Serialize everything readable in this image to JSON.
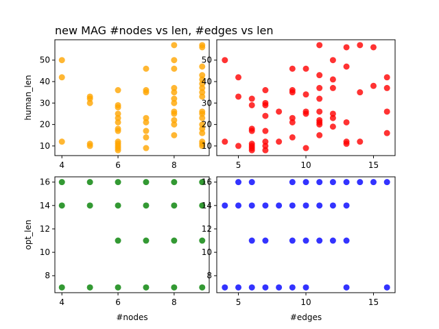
{
  "figure": {
    "title": "new MAG #nodes vs len, #edges vs len",
    "colors": {
      "orange": "#ffa500",
      "red": "#ff0000",
      "green": "#008000",
      "blue": "#0000ff"
    }
  },
  "chart_data": [
    {
      "type": "scatter",
      "name": "top-left",
      "color": "#ffa500",
      "xlabel": "",
      "ylabel": "human_len",
      "xlim": [
        3.75,
        9.25
      ],
      "ylim": [
        5.5,
        59.5
      ],
      "xticks": [
        4,
        6,
        8
      ],
      "yticks": [
        10,
        20,
        30,
        40,
        50
      ],
      "points": [
        [
          4,
          50
        ],
        [
          4,
          42
        ],
        [
          4,
          12
        ],
        [
          5,
          33
        ],
        [
          5,
          32
        ],
        [
          5,
          30
        ],
        [
          5,
          11
        ],
        [
          5,
          10
        ],
        [
          6,
          36
        ],
        [
          6,
          29
        ],
        [
          6,
          28
        ],
        [
          6,
          25
        ],
        [
          6,
          23
        ],
        [
          6,
          21
        ],
        [
          6,
          18
        ],
        [
          6,
          17
        ],
        [
          6,
          12
        ],
        [
          6,
          11
        ],
        [
          6,
          10
        ],
        [
          6,
          9
        ],
        [
          6,
          8
        ],
        [
          7,
          46
        ],
        [
          7,
          36
        ],
        [
          7,
          35
        ],
        [
          7,
          23
        ],
        [
          7,
          21
        ],
        [
          7,
          17
        ],
        [
          7,
          14
        ],
        [
          7,
          9
        ],
        [
          8,
          57
        ],
        [
          8,
          50
        ],
        [
          8,
          46
        ],
        [
          8,
          37
        ],
        [
          8,
          35
        ],
        [
          8,
          32
        ],
        [
          8,
          30
        ],
        [
          8,
          26
        ],
        [
          8,
          25
        ],
        [
          8,
          22
        ],
        [
          8,
          20
        ],
        [
          8,
          15
        ],
        [
          9,
          57
        ],
        [
          9,
          56
        ],
        [
          9,
          47
        ],
        [
          9,
          43
        ],
        [
          9,
          41
        ],
        [
          9,
          39
        ],
        [
          9,
          37
        ],
        [
          9,
          35
        ],
        [
          9,
          33
        ],
        [
          9,
          26
        ],
        [
          9,
          25
        ],
        [
          9,
          23
        ],
        [
          9,
          20
        ],
        [
          9,
          18
        ],
        [
          9,
          16
        ],
        [
          9,
          12
        ],
        [
          9,
          11
        ],
        [
          9,
          10
        ]
      ]
    },
    {
      "type": "scatter",
      "name": "top-right",
      "color": "#ff0000",
      "xlabel": "",
      "ylabel": "",
      "xlim": [
        3.4,
        16.6
      ],
      "ylim": [
        5.5,
        59.5
      ],
      "xticks": [
        5,
        10,
        15
      ],
      "yticks": [
        10,
        20,
        30,
        40,
        50
      ],
      "points": [
        [
          4,
          50
        ],
        [
          4,
          12
        ],
        [
          5,
          42
        ],
        [
          5,
          33
        ],
        [
          5,
          10
        ],
        [
          6,
          32
        ],
        [
          6,
          29
        ],
        [
          6,
          18
        ],
        [
          6,
          17
        ],
        [
          6,
          11
        ],
        [
          6,
          10
        ],
        [
          6,
          9
        ],
        [
          6,
          8
        ],
        [
          7,
          36
        ],
        [
          7,
          30
        ],
        [
          7,
          29
        ],
        [
          7,
          24
        ],
        [
          7,
          17
        ],
        [
          7,
          12
        ],
        [
          7,
          10
        ],
        [
          7,
          8
        ],
        [
          8,
          26
        ],
        [
          8,
          12
        ],
        [
          9,
          46
        ],
        [
          9,
          36
        ],
        [
          9,
          35
        ],
        [
          9,
          23
        ],
        [
          9,
          21
        ],
        [
          9,
          14
        ],
        [
          10,
          46
        ],
        [
          10,
          34
        ],
        [
          10,
          26
        ],
        [
          10,
          25
        ],
        [
          10,
          9
        ],
        [
          11,
          57
        ],
        [
          11,
          43
        ],
        [
          11,
          37
        ],
        [
          11,
          32
        ],
        [
          11,
          26
        ],
        [
          11,
          22
        ],
        [
          11,
          21
        ],
        [
          11,
          20
        ],
        [
          11,
          15
        ],
        [
          12,
          50
        ],
        [
          12,
          41
        ],
        [
          12,
          37
        ],
        [
          12,
          25
        ],
        [
          12,
          23
        ],
        [
          12,
          19
        ],
        [
          13,
          56
        ],
        [
          13,
          47
        ],
        [
          13,
          21
        ],
        [
          13,
          12
        ],
        [
          13,
          11
        ],
        [
          14,
          57
        ],
        [
          14,
          35
        ],
        [
          14,
          12
        ],
        [
          15,
          56
        ],
        [
          15,
          38
        ],
        [
          16,
          42
        ],
        [
          16,
          37
        ],
        [
          16,
          26
        ],
        [
          16,
          16
        ]
      ]
    },
    {
      "type": "scatter",
      "name": "bottom-left",
      "color": "#008000",
      "xlabel": "#nodes",
      "ylabel": "opt_len",
      "xlim": [
        3.75,
        9.25
      ],
      "ylim": [
        6.55,
        16.45
      ],
      "xticks": [
        4,
        6,
        8
      ],
      "yticks": [
        8,
        10,
        12,
        14,
        16
      ],
      "points": [
        [
          4,
          16
        ],
        [
          4,
          14
        ],
        [
          4,
          7
        ],
        [
          5,
          16
        ],
        [
          5,
          14
        ],
        [
          5,
          7
        ],
        [
          6,
          16
        ],
        [
          6,
          14
        ],
        [
          6,
          11
        ],
        [
          6,
          7
        ],
        [
          7,
          16
        ],
        [
          7,
          14
        ],
        [
          7,
          11
        ],
        [
          7,
          7
        ],
        [
          8,
          16
        ],
        [
          8,
          14
        ],
        [
          8,
          11
        ],
        [
          8,
          7
        ],
        [
          9,
          16
        ],
        [
          9,
          14
        ],
        [
          9,
          11
        ],
        [
          9,
          7
        ]
      ]
    },
    {
      "type": "scatter",
      "name": "bottom-right",
      "color": "#0000ff",
      "xlabel": "#edges",
      "ylabel": "",
      "xlim": [
        3.4,
        16.6
      ],
      "ylim": [
        6.55,
        16.45
      ],
      "xticks": [
        5,
        10,
        15
      ],
      "yticks": [
        8,
        10,
        12,
        14,
        16
      ],
      "points": [
        [
          4,
          14
        ],
        [
          4,
          7
        ],
        [
          5,
          16
        ],
        [
          5,
          14
        ],
        [
          5,
          7
        ],
        [
          6,
          16
        ],
        [
          6,
          14
        ],
        [
          6,
          11
        ],
        [
          6,
          7
        ],
        [
          7,
          14
        ],
        [
          7,
          11
        ],
        [
          7,
          7
        ],
        [
          8,
          14
        ],
        [
          8,
          7
        ],
        [
          9,
          16
        ],
        [
          9,
          14
        ],
        [
          9,
          11
        ],
        [
          9,
          7
        ],
        [
          10,
          16
        ],
        [
          10,
          14
        ],
        [
          10,
          11
        ],
        [
          10,
          7
        ],
        [
          11,
          16
        ],
        [
          11,
          14
        ],
        [
          11,
          11
        ],
        [
          12,
          16
        ],
        [
          12,
          14
        ],
        [
          12,
          11
        ],
        [
          13,
          16
        ],
        [
          13,
          14
        ],
        [
          13,
          11
        ],
        [
          13,
          7
        ],
        [
          14,
          16
        ],
        [
          15,
          16
        ],
        [
          16,
          16
        ],
        [
          16,
          7
        ]
      ]
    }
  ]
}
